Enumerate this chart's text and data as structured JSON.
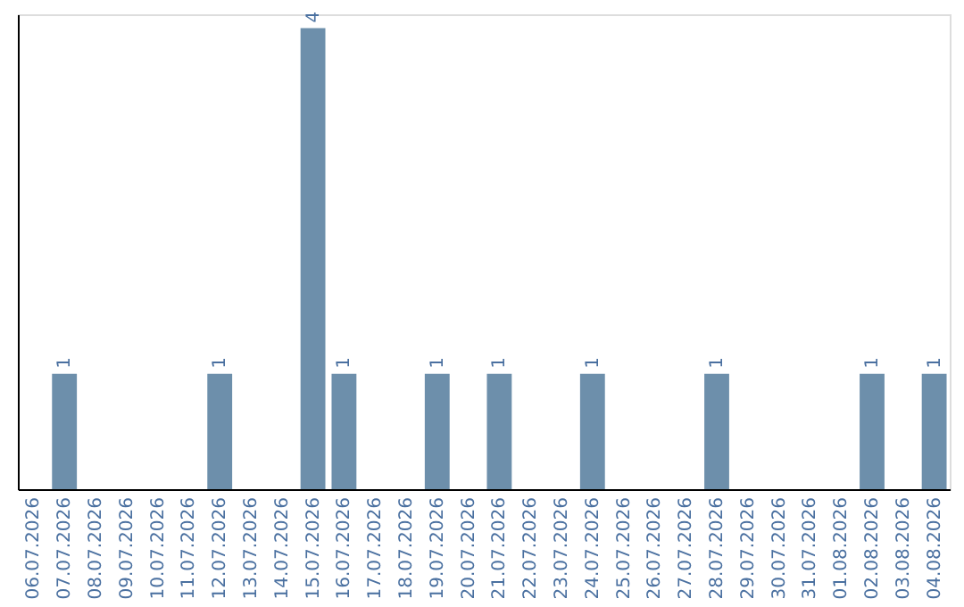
{
  "chart_data": {
    "type": "bar",
    "categories": [
      "06.07.2026",
      "07.07.2026",
      "08.07.2026",
      "09.07.2026",
      "10.07.2026",
      "11.07.2026",
      "12.07.2026",
      "13.07.2026",
      "14.07.2026",
      "15.07.2026",
      "16.07.2026",
      "17.07.2026",
      "18.07.2026",
      "19.07.2026",
      "20.07.2026",
      "21.07.2026",
      "22.07.2026",
      "23.07.2026",
      "24.07.2026",
      "25.07.2026",
      "26.07.2026",
      "27.07.2026",
      "28.07.2026",
      "29.07.2026",
      "30.07.2026",
      "31.07.2026",
      "01.08.2026",
      "02.08.2026",
      "03.08.2026",
      "04.08.2026"
    ],
    "values": [
      0,
      1,
      0,
      0,
      0,
      0,
      1,
      0,
      0,
      4,
      1,
      0,
      0,
      1,
      0,
      1,
      0,
      0,
      1,
      0,
      0,
      0,
      1,
      0,
      0,
      0,
      0,
      1,
      0,
      1
    ],
    "value_labels": [
      null,
      "1",
      null,
      null,
      null,
      null,
      "1",
      null,
      null,
      "4",
      "1",
      null,
      null,
      "1",
      null,
      "1",
      null,
      null,
      "1",
      null,
      null,
      null,
      "1",
      null,
      null,
      null,
      null,
      "1",
      null,
      "1"
    ],
    "color": "#6d8fab",
    "tick_labels": "x",
    "grid": false
  }
}
